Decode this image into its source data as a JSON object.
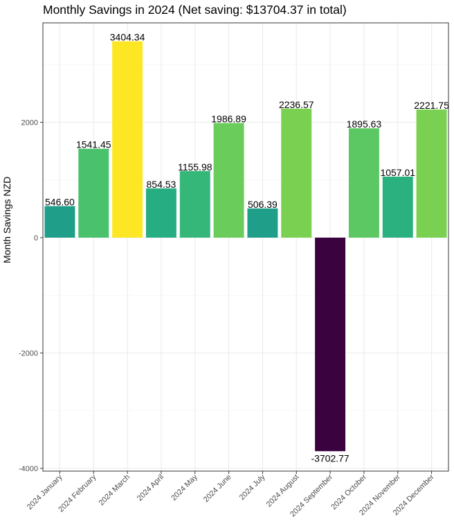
{
  "chart_data": {
    "type": "bar",
    "title": "Monthly Savings in 2024 (Net saving: $13704.37 in total)",
    "xlabel": "",
    "ylabel": "Month Savings NZD",
    "ylim": [
      -4000,
      4000
    ],
    "yticks": [
      -4000,
      -2000,
      0,
      2000
    ],
    "grid": true,
    "categories": [
      "2024 January",
      "2024 February",
      "2024 March",
      "2024 April",
      "2024 May",
      "2024 June",
      "2024 July",
      "2024 August",
      "2024 September",
      "2024 October",
      "2024 November",
      "2024 December"
    ],
    "values": [
      546.6,
      1541.45,
      3404.34,
      854.53,
      1155.98,
      1986.89,
      506.39,
      2236.57,
      -3702.77,
      1895.63,
      1057.01,
      2221.75
    ],
    "value_labels": [
      "546.60",
      "1541.45",
      "3404.34",
      "854.53",
      "1155.98",
      "1986.89",
      "506.39",
      "2236.57",
      "-3702.77",
      "1895.63",
      "1057.01",
      "2221.75"
    ],
    "bar_colors": [
      "#1F9E89",
      "#4AC16D",
      "#FDE725",
      "#26AD81",
      "#35B779",
      "#6ACD5B",
      "#1F9E89",
      "#7AD151",
      "#3B0240",
      "#5BC863",
      "#2BB07F",
      "#7AD151"
    ],
    "legend": "none"
  }
}
